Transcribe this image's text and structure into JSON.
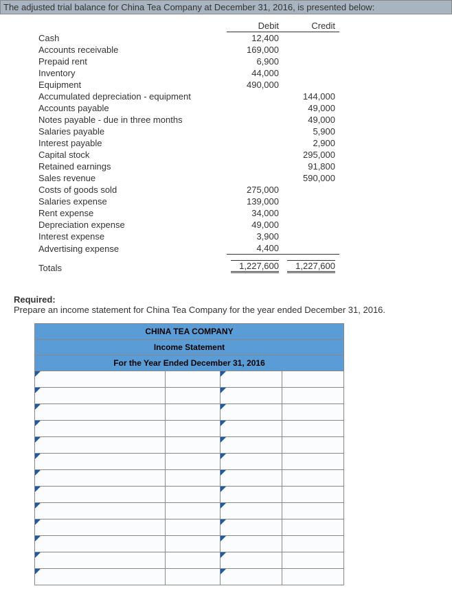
{
  "header": {
    "text": "The adjusted trial balance for China Tea Company at December 31, 2016, is presented below:"
  },
  "trial_balance": {
    "col_headers": {
      "debit": "Debit",
      "credit": "Credit"
    },
    "rows": [
      {
        "label": "Cash",
        "debit": "12,400",
        "credit": ""
      },
      {
        "label": "Accounts receivable",
        "debit": "169,000",
        "credit": ""
      },
      {
        "label": "Prepaid rent",
        "debit": "6,900",
        "credit": ""
      },
      {
        "label": "Inventory",
        "debit": "44,000",
        "credit": ""
      },
      {
        "label": "Equipment",
        "debit": "490,000",
        "credit": ""
      },
      {
        "label": "Accumulated depreciation - equipment",
        "debit": "",
        "credit": "144,000"
      },
      {
        "label": "Accounts payable",
        "debit": "",
        "credit": "49,000"
      },
      {
        "label": "Notes payable - due in three months",
        "debit": "",
        "credit": "49,000"
      },
      {
        "label": "Salaries payable",
        "debit": "",
        "credit": "5,900"
      },
      {
        "label": "Interest payable",
        "debit": "",
        "credit": "2,900"
      },
      {
        "label": "Capital stock",
        "debit": "",
        "credit": "295,000"
      },
      {
        "label": "Retained earnings",
        "debit": "",
        "credit": "91,800"
      },
      {
        "label": "Sales revenue",
        "debit": "",
        "credit": "590,000"
      },
      {
        "label": "Costs of goods sold",
        "debit": "275,000",
        "credit": ""
      },
      {
        "label": "Salaries expense",
        "debit": "139,000",
        "credit": ""
      },
      {
        "label": "Rent expense",
        "debit": "34,000",
        "credit": ""
      },
      {
        "label": "Depreciation expense",
        "debit": "49,000",
        "credit": ""
      },
      {
        "label": "Interest expense",
        "debit": "3,900",
        "credit": ""
      },
      {
        "label": "Advertising expense",
        "debit": "4,400",
        "credit": ""
      }
    ],
    "totals": {
      "label": "Totals",
      "debit": "1,227,600",
      "credit": "1,227,600"
    }
  },
  "required": {
    "label": "Required:",
    "text": "Prepare an income statement for China Tea Company for the year ended December 31, 2016."
  },
  "answer_form": {
    "title1": "CHINA TEA COMPANY",
    "title2": "Income Statement",
    "title3": "For the Year Ended December 31, 2016",
    "blank_rows": 13,
    "colors": {
      "header_bg": "#5a9dd6",
      "triangle": "#1a5aa8",
      "border": "#888888",
      "cell_bg": "#fafcfe"
    }
  }
}
